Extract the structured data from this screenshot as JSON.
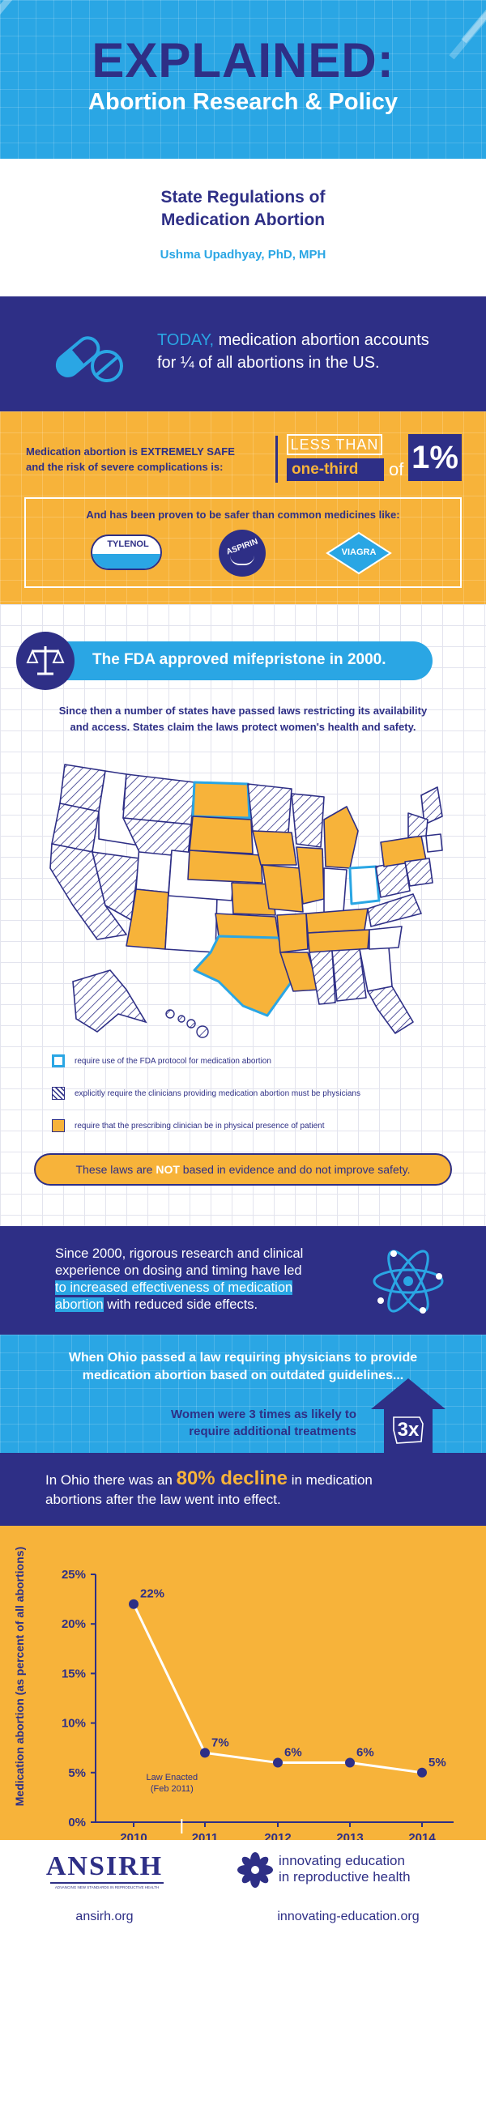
{
  "header": {
    "title": "EXPLAINED:",
    "subtitle": "Abortion Research & Policy"
  },
  "intro": {
    "title_line1": "State Regulations of",
    "title_line2": "Medication Abortion",
    "author": "Ushma Upadhyay, PhD, MPH"
  },
  "today": {
    "lead": "TODAY,",
    "line1_rest": " medication abortion accounts",
    "line2": "for ¼ of all abortions in the US."
  },
  "safety": {
    "line1": "Medication abortion is EXTREMELY SAFE",
    "line2": "and the risk of severe complications is:",
    "less_than": "LESS THAN",
    "one_third": "one-third",
    "of": "of",
    "percent": "1%",
    "safer_text": "And has been proven to be safer than common medicines like:",
    "medicines": [
      "TYLENOL",
      "ASPIRIN",
      "VIAGRA"
    ]
  },
  "fda": {
    "banner": "The FDA approved mifepristone in 2000.",
    "para_line1": "Since then a number of states have passed laws restricting its availability",
    "para_line2": "and access. States claim the laws protect women's health and safety.",
    "legend": [
      "require use of the FDA protocol for medication abortion",
      "explicitly require the clinicians providing medication abortion must be physicians",
      "require that the prescribing clinician be in physical presence of patient"
    ],
    "note_pre": "These laws are ",
    "note_not": "NOT",
    "note_post": " based in evidence and do not improve safety."
  },
  "research": {
    "line1": "Since 2000, rigorous research and clinical",
    "line2": "experience on dosing and timing have led",
    "hl1": "to increased effectiveness of medication",
    "hl2": "abortion",
    "line3_rest": " with reduced side effects."
  },
  "ohio": {
    "line1": "When Ohio passed a law requiring physicians to provide",
    "line2": "medication abortion based on outdated guidelines...",
    "women_line1": "Women were 3 times as likely to",
    "women_line2": "require additional treatments",
    "times": "3x"
  },
  "decline": {
    "line1_pre": "In Ohio there was an ",
    "line1_hl": "80% decline",
    "line1_post": " in medication",
    "line2": "abortions after the law went into effect."
  },
  "chart_data": {
    "type": "line",
    "x": [
      2010,
      2011,
      2012,
      2013,
      2014
    ],
    "series": [
      {
        "values": [
          22,
          7,
          6,
          6,
          5
        ],
        "labels": [
          "22%",
          "7%",
          "6%",
          "6%",
          "5%"
        ]
      }
    ],
    "ylabel": "Medication abortion (as percent of all abortions)",
    "yticks": [
      "0%",
      "5%",
      "10%",
      "15%",
      "20%",
      "25%"
    ],
    "ylim": [
      0,
      25
    ],
    "xticks": [
      "2010",
      "2011",
      "2012",
      "2013",
      "2014"
    ],
    "annotation_line1": "Law Enacted",
    "annotation_line2": "(Feb 2011)",
    "colors": {
      "line": "#ffffff",
      "marker": "#2e2f86",
      "background": "#f7b33a"
    }
  },
  "footer": {
    "ansirh_logo": "ANSIRH",
    "ansirh_tagline": "ADVANCING NEW STANDARDS IN REPRODUCTIVE HEALTH",
    "ansirh_url": "ansirh.org",
    "ie_line1": "innovating education",
    "ie_line2": "in reproductive health",
    "ie_url": "innovating-education.org"
  },
  "colors": {
    "navy": "#2e2f86",
    "blue": "#2aa6e4",
    "orange": "#f7b33a",
    "white": "#ffffff"
  }
}
